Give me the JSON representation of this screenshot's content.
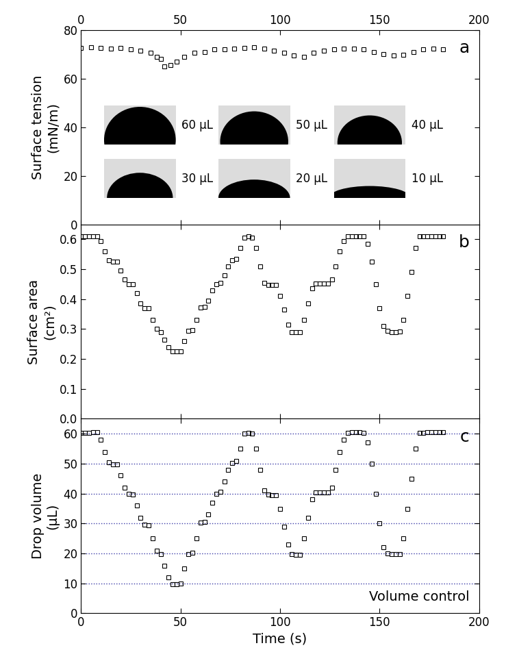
{
  "chart_data": [
    {
      "type": "scatter",
      "panel_label": "a",
      "ylabel": "Surface tension\n(mN/m)",
      "color": "#000000",
      "marker": "square",
      "xlim": [
        0,
        200
      ],
      "xticks": [
        0,
        50,
        100,
        150,
        200
      ],
      "ylim": [
        0,
        80
      ],
      "yticks": [
        0,
        20,
        40,
        60,
        80
      ],
      "inset_labels": [
        "60 µL",
        "50 µL",
        "40 µL",
        "30 µL",
        "20 µL",
        "10 µL"
      ],
      "x": [
        0,
        5,
        10,
        15,
        20,
        25,
        30,
        35,
        38,
        40,
        42,
        45,
        48,
        52,
        57,
        62,
        67,
        72,
        77,
        82,
        87,
        92,
        97,
        102,
        107,
        112,
        117,
        122,
        127,
        132,
        137,
        142,
        147,
        152,
        157,
        162,
        167,
        172,
        177,
        182
      ],
      "values": [
        72.5,
        72.8,
        72.5,
        72.3,
        72.6,
        72.0,
        71.5,
        70.5,
        69.0,
        68.0,
        65.0,
        65.5,
        67.0,
        69.0,
        70.5,
        71.0,
        72.0,
        72.0,
        72.2,
        72.5,
        72.7,
        72.2,
        71.5,
        70.5,
        69.5,
        69.0,
        70.5,
        71.5,
        72.0,
        72.3,
        72.3,
        72.0,
        71.0,
        70.0,
        69.5,
        69.8,
        71.0,
        72.0,
        72.2,
        72.0
      ]
    },
    {
      "type": "scatter",
      "panel_label": "b",
      "ylabel": "Surface area\n(cm²)",
      "color": "#000000",
      "marker": "square",
      "xlim": [
        0,
        200
      ],
      "xticks": [
        0,
        50,
        100,
        150,
        200
      ],
      "ylim": [
        0,
        0.65
      ],
      "yticks": [
        0.0,
        0.1,
        0.2,
        0.3,
        0.4,
        0.5,
        0.6
      ],
      "x": [
        0,
        2,
        4,
        6,
        8,
        10,
        12,
        14,
        16,
        18,
        20,
        22,
        24,
        26,
        28,
        30,
        32,
        34,
        36,
        38,
        40,
        42,
        44,
        46,
        48,
        50,
        52,
        54,
        56,
        58,
        60,
        62,
        64,
        66,
        68,
        70,
        72,
        74,
        76,
        78,
        80,
        82,
        84,
        86,
        88,
        90,
        92,
        94,
        96,
        98,
        100,
        102,
        104,
        106,
        108,
        110,
        112,
        114,
        116,
        118,
        120,
        122,
        124,
        126,
        128,
        130,
        132,
        134,
        136,
        138,
        140,
        142,
        144,
        146,
        148,
        150,
        152,
        154,
        156,
        158,
        160,
        162,
        164,
        166,
        168,
        170,
        172,
        174,
        176,
        178,
        180,
        182
      ],
      "values": [
        0.61,
        0.61,
        0.61,
        0.61,
        0.61,
        0.595,
        0.56,
        0.53,
        0.525,
        0.525,
        0.495,
        0.465,
        0.45,
        0.45,
        0.42,
        0.385,
        0.37,
        0.37,
        0.33,
        0.3,
        0.29,
        0.265,
        0.24,
        0.225,
        0.225,
        0.225,
        0.26,
        0.295,
        0.297,
        0.33,
        0.372,
        0.375,
        0.395,
        0.43,
        0.45,
        0.455,
        0.48,
        0.51,
        0.53,
        0.535,
        0.57,
        0.605,
        0.61,
        0.605,
        0.57,
        0.51,
        0.455,
        0.447,
        0.447,
        0.447,
        0.41,
        0.365,
        0.315,
        0.29,
        0.29,
        0.29,
        0.33,
        0.385,
        0.435,
        0.452,
        0.453,
        0.453,
        0.453,
        0.465,
        0.51,
        0.56,
        0.595,
        0.61,
        0.61,
        0.61,
        0.61,
        0.61,
        0.585,
        0.525,
        0.45,
        0.37,
        0.31,
        0.295,
        0.29,
        0.29,
        0.292,
        0.33,
        0.41,
        0.49,
        0.57,
        0.61,
        0.61,
        0.61,
        0.61,
        0.61,
        0.61,
        0.61
      ]
    },
    {
      "type": "scatter",
      "panel_label": "c",
      "ylabel": "Drop volume\n(µL)",
      "xlabel": "Time (s)",
      "annotation": "Volume control",
      "color": "#000000",
      "marker": "square",
      "reference_lines": [
        10,
        20,
        30,
        40,
        50,
        60
      ],
      "reference_color": "#3a3aa8",
      "xlim": [
        0,
        200
      ],
      "xticks": [
        0,
        50,
        100,
        150,
        200
      ],
      "ylim": [
        0,
        65
      ],
      "yticks": [
        0,
        10,
        20,
        30,
        40,
        50,
        60
      ],
      "x": [
        0,
        2,
        4,
        6,
        8,
        10,
        12,
        14,
        16,
        18,
        20,
        22,
        24,
        26,
        28,
        30,
        32,
        34,
        36,
        38,
        40,
        42,
        44,
        46,
        48,
        50,
        52,
        54,
        56,
        58,
        60,
        62,
        64,
        66,
        68,
        70,
        72,
        74,
        76,
        78,
        80,
        82,
        84,
        86,
        88,
        90,
        92,
        94,
        96,
        98,
        100,
        102,
        104,
        106,
        108,
        110,
        112,
        114,
        116,
        118,
        120,
        122,
        124,
        126,
        128,
        130,
        132,
        134,
        136,
        138,
        140,
        142,
        144,
        146,
        148,
        150,
        152,
        154,
        156,
        158,
        160,
        162,
        164,
        166,
        168,
        170,
        172,
        174,
        176,
        178,
        180,
        182
      ],
      "values": [
        60.3,
        60.3,
        60.4,
        60.5,
        60.5,
        58,
        54,
        50.5,
        49.7,
        49.7,
        46,
        42,
        40,
        39.8,
        36,
        32,
        29.6,
        29.5,
        25,
        21,
        19.7,
        16,
        12,
        9.8,
        9.7,
        10,
        15,
        19.8,
        20.3,
        25,
        30.2,
        30.5,
        33,
        37,
        40,
        40.5,
        44,
        48,
        50.2,
        51,
        55,
        60,
        60.3,
        60,
        55,
        48,
        41,
        39.6,
        39.5,
        39.5,
        35,
        29,
        23,
        19.7,
        19.5,
        19.5,
        25,
        32,
        38,
        40.3,
        40.4,
        40.4,
        40.4,
        42,
        48,
        54,
        58,
        60.3,
        60.5,
        60.5,
        60.5,
        60.3,
        57,
        50,
        40,
        30,
        22,
        20,
        19.7,
        19.7,
        19.8,
        25,
        35,
        45,
        55,
        60.2,
        60.4,
        60.5,
        60.5,
        60.5,
        60.5,
        60.5
      ]
    }
  ]
}
